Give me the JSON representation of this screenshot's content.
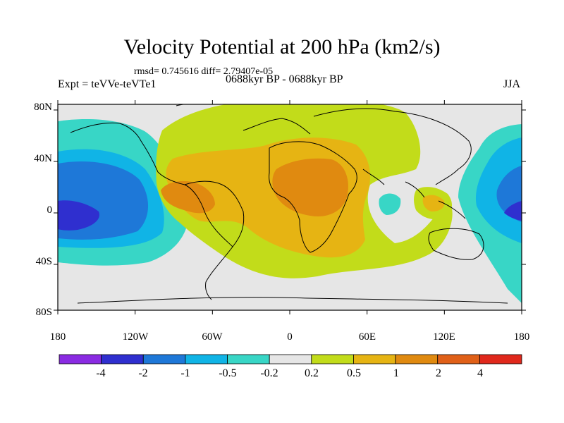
{
  "title": "Velocity Potential at 200 hPa (km2/s)",
  "stats": "rmsd= 0.745616 diff= 2.79407e-05",
  "left_label": "Expt = teVVe-teVTe1",
  "center_label": "0688kyr BP - 0688kyr BP",
  "right_label": "JJA",
  "lat_ticks": [
    "80N",
    "40N",
    "0",
    "40S",
    "80S"
  ],
  "lon_ticks": [
    "180",
    "120W",
    "60W",
    "0",
    "60E",
    "120E",
    "180"
  ],
  "colorbar": {
    "colors": [
      "#8a2be2",
      "#2f2fcf",
      "#1e78d8",
      "#10b4e6",
      "#38d6c6",
      "#e6e6e6",
      "#c2dc1a",
      "#e6b413",
      "#e08a10",
      "#e06018",
      "#e0281c"
    ],
    "labels": [
      "-4",
      "-2",
      "-1",
      "-0.5",
      "-0.2",
      "0.2",
      "0.5",
      "1",
      "2",
      "4"
    ]
  },
  "map_colors": {
    "background": "#e6e6e6",
    "coast": "#000000"
  }
}
